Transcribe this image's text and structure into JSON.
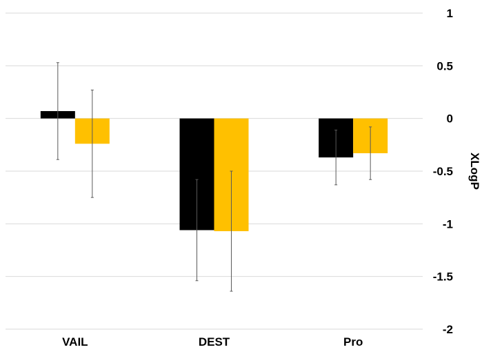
{
  "chart_data": {
    "type": "bar",
    "categories": [
      "VAIL",
      "DEST",
      "Pro"
    ],
    "series": [
      {
        "color": "#000000",
        "values": [
          0.07,
          -1.06,
          -0.37
        ],
        "error": [
          0.46,
          0.48,
          0.26
        ]
      },
      {
        "color": "#FFC000",
        "values": [
          -0.24,
          -1.07,
          -0.33
        ],
        "error": [
          0.51,
          0.57,
          0.25
        ]
      }
    ],
    "title": "",
    "xlabel": "",
    "ylabel": "XLogP",
    "ylim": [
      -2,
      1
    ],
    "yticks": [
      1,
      0.5,
      0,
      -0.5,
      -1,
      -1.5,
      -2
    ],
    "ytick_labels": [
      "1",
      "0.5",
      "0",
      "-0.5",
      "-1",
      "-1.5",
      "-2"
    ],
    "grid": true,
    "y_axis_side": "right",
    "legend": "none"
  }
}
